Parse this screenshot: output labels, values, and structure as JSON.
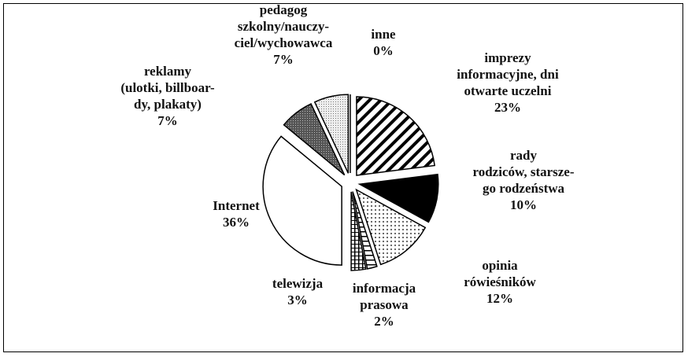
{
  "chart_data": {
    "type": "pie",
    "categories": [
      "inne",
      "imprezy\ninformacyjne, dni\notwarte uczelni",
      "rady\nrodziców, starsze-\ngo rodzeństwa",
      "opinia\nrówieśników",
      "informacja\nprasowa",
      "telewizja",
      "Internet",
      "reklamy\n(ulotki, billboar-\ndy, plakaty)",
      "pedagog\nszkolny/nauczy-\nciel/wychowawca"
    ],
    "values": [
      0,
      23,
      10,
      12,
      2,
      3,
      36,
      7,
      7
    ],
    "value_labels": [
      "0%",
      "23%",
      "10%",
      "12%",
      "2%",
      "3%",
      "36%",
      "7%",
      "7%"
    ],
    "patterns": [
      "none",
      "diagonal",
      "solid",
      "dots",
      "horizontal",
      "vertical",
      "none",
      "dark",
      "light"
    ]
  }
}
